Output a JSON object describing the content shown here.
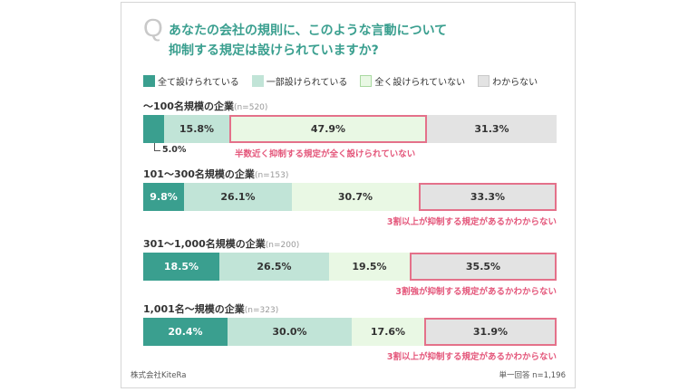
{
  "q_mark": "Q",
  "title_line1": "あなたの会社の規則に、このような言動について",
  "title_line2": "抑制する規定は設けられていますか?",
  "legend": [
    {
      "label": "全て設けられている",
      "color": "#3a9f8f",
      "border": "#3a9f8f"
    },
    {
      "label": "一部設けられている",
      "color": "#c1e4d7",
      "border": "#c1e4d7"
    },
    {
      "label": "全く設けられていない",
      "color": "#e9f8e4",
      "border": "#a9d9a1"
    },
    {
      "label": "わからない",
      "color": "#e3e3e3",
      "border": "#c9c9c9"
    }
  ],
  "chart_data": {
    "type": "bar",
    "orientation": "horizontal-stacked-100",
    "series_names": [
      "全て設けられている",
      "一部設けられている",
      "全く設けられていない",
      "わからない"
    ],
    "groups": [
      {
        "name": "〜100名規模の企業",
        "n": "(n=520)",
        "values": [
          5.0,
          15.8,
          47.9,
          31.3
        ],
        "labels": [
          "5.0%",
          "15.8%",
          "47.9%",
          "31.3%"
        ],
        "highlight": 2,
        "annotation": "半数近く抑制する規定が全く設けられていない"
      },
      {
        "name": "101〜300名規模の企業",
        "n": "(n=153)",
        "values": [
          9.8,
          26.1,
          30.7,
          33.3
        ],
        "labels": [
          "9.8%",
          "26.1%",
          "30.7%",
          "33.3%"
        ],
        "highlight": 3,
        "annotation": "3割以上が抑制する規定があるかわからない"
      },
      {
        "name": "301〜1,000名規模の企業",
        "n": "(n=200)",
        "values": [
          18.5,
          26.5,
          19.5,
          35.5
        ],
        "labels": [
          "18.5%",
          "26.5%",
          "19.5%",
          "35.5%"
        ],
        "highlight": 3,
        "annotation": "3割強が抑制する規定があるかわからない"
      },
      {
        "name": "1,001名〜規模の企業",
        "n": "(n=323)",
        "values": [
          20.4,
          30.0,
          17.6,
          31.9
        ],
        "labels": [
          "20.4%",
          "30.0%",
          "17.6%",
          "31.9%"
        ],
        "highlight": 3,
        "annotation": "3割以上が抑制する規定があるかわからない"
      }
    ]
  },
  "footer_left": "株式会社KiteRa",
  "footer_right": "単一回答 n=1,196"
}
